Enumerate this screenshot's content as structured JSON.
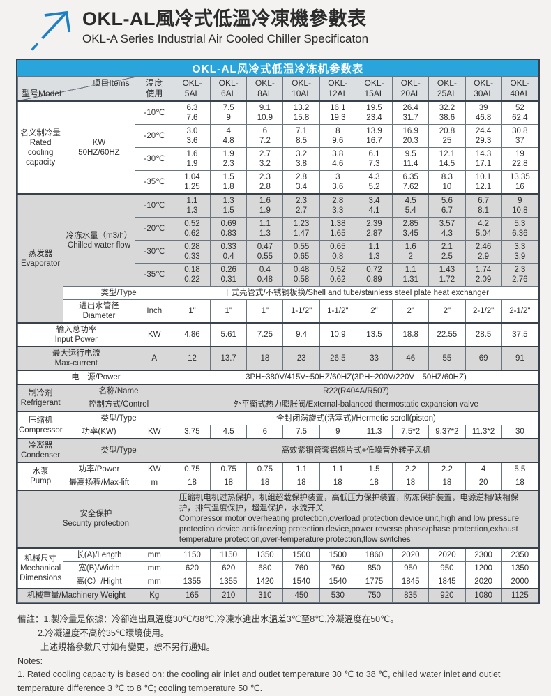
{
  "page": {
    "title_zh": "OKL-AL風冷式低溫冷凍機參數表",
    "title_en": "OKL-A Series Industrial Air Cooled Chiller Specificaton"
  },
  "colors": {
    "bar_blue": "#29a5dc",
    "arrow_blue": "#1d7fc4",
    "header_cell_bg": "#dcdfe2",
    "gray_row_bg": "#d8d8d8",
    "border_dark": "#39424b"
  },
  "table": {
    "title": "OKL-AL风冷式低温冷冻机参数表",
    "corner": {
      "bottom_left": "型号Model",
      "top_right": "项目Items"
    },
    "temp_header": "温度\n使用",
    "models": [
      "OKL-\n5AL",
      "OKL-\n6AL",
      "OKL-\n8AL",
      "OKL-\n10AL",
      "OKL-\n12AL",
      "OKL-\n15AL",
      "OKL-\n20AL",
      "OKL-\n25AL",
      "OKL-\n30AL",
      "OKL-\n40AL"
    ],
    "rows": [
      {
        "sep": true,
        "cells": [
          {
            "t": "名义制冷量\nRated\ncooling\ncapacity",
            "rs": 4
          },
          {
            "t": "KW\n50HZ/60HZ",
            "rs": 4
          },
          {
            "t": "-10℃"
          },
          "6.3\n7.6",
          "7.5\n9",
          "9.1\n10.9",
          "13.2\n15.8",
          "16.1\n19.3",
          "19.5\n23.4",
          "26.4\n31.7",
          "32.2\n38.6",
          "39\n46.8",
          "52\n62.4"
        ]
      },
      {
        "cells": [
          {
            "t": "-20℃"
          },
          "3.0\n3.6",
          "4\n4.8",
          "6\n7.2",
          "7.1\n8.5",
          "8\n9.6",
          "13.9\n16.7",
          "16.9\n20.3",
          "20.8\n25",
          "24.4\n29.3",
          "30.8\n37"
        ]
      },
      {
        "cells": [
          {
            "t": "-30℃"
          },
          "1.6\n1.9",
          "1.9\n2.3",
          "2.7\n3.2",
          "3.2\n3.8",
          "3.8\n4.6",
          "6.1\n7.3",
          "9.5\n11.4",
          "12.1\n14.5",
          "14.3\n17.1",
          "19\n22.8"
        ]
      },
      {
        "cells": [
          {
            "t": "-35℃"
          },
          "1.04\n1.25",
          "1.5\n1.8",
          "2.3\n2.8",
          "2.8\n3.4",
          "3\n3.6",
          "4.3\n5.2",
          "6.35\n7.62",
          "8.3\n10",
          "10.1\n12.1",
          "13.35\n16"
        ]
      },
      {
        "g": true,
        "sep": true,
        "cells": [
          {
            "t": "蒸发器\nEvaporator",
            "rs": 6
          },
          {
            "t": "冷冻水量（m3/h）\nChilled water flow",
            "rs": 4
          },
          {
            "t": "-10℃"
          },
          "1.1\n1.3",
          "1.3\n1.5",
          "1.6\n1.9",
          "2.3\n2.7",
          "2.8\n3.3",
          "3.4\n4.1",
          "4.5\n5.4",
          "5.6\n6.7",
          "6.7\n8.1",
          "9\n10.8"
        ]
      },
      {
        "g": true,
        "cells": [
          {
            "t": "-20℃"
          },
          "0.52\n0.62",
          "0.69\n0.83",
          "1.1\n1.3",
          "1.23\n1.47",
          "1.38\n1.65",
          "2.39\n2.87",
          "2.85\n3.45",
          "3.57\n4.3",
          "4.2\n5.04",
          "5.3\n6.36"
        ]
      },
      {
        "g": true,
        "cells": [
          {
            "t": "-30℃"
          },
          "0.28\n0.33",
          "0.33\n0.4",
          "0.47\n0.55",
          "0.55\n0.65",
          "0.65\n0.8",
          "1.1\n1.3",
          "1.6\n2",
          "2.1\n2.5",
          "2.46\n2.9",
          "3.3\n3.9"
        ]
      },
      {
        "g": true,
        "cells": [
          {
            "t": "-35℃"
          },
          "0.18\n0.22",
          "0.26\n0.31",
          "0.4\n0.48",
          "0.48\n0.58",
          "0.52\n0.62",
          "0.72\n0.89",
          "1.1\n1.31",
          "1.43\n1.72",
          "1.74\n2.09",
          "2.3\n2.76"
        ]
      },
      {
        "cells": [
          {
            "t": "类型/Type",
            "cs": 2
          },
          {
            "t": "干式壳管式/不锈钢板换/Shell and tube/stainless steel plate heat exchanger",
            "cs": 10
          }
        ]
      },
      {
        "cells": [
          {
            "t": "进出水管径\nDiameter"
          },
          {
            "t": "Inch"
          },
          "1\"",
          "1\"",
          "1\"",
          "1-1/2\"",
          "1-1/2\"",
          "2\"",
          "2\"",
          "2\"",
          "2-1/2\"",
          "2-1/2\""
        ]
      },
      {
        "sep": true,
        "cells": [
          {
            "t": "输入总功率\nInput Power",
            "cs": 2
          },
          {
            "t": "KW"
          },
          "4.86",
          "5.61",
          "7.25",
          "9.4",
          "10.9",
          "13.5",
          "18.8",
          "22.55",
          "28.5",
          "37.5"
        ]
      },
      {
        "g": true,
        "sep": true,
        "cells": [
          {
            "t": "最大运行电流\nMax-current",
            "cs": 2
          },
          {
            "t": "A"
          },
          "12",
          "13.7",
          "18",
          "23",
          "26.5",
          "33",
          "46",
          "55",
          "69",
          "91"
        ]
      },
      {
        "sep": true,
        "cells": [
          {
            "t": "电　源/Power",
            "cs": 3
          },
          {
            "t": "3PH~380V/415V~50HZ/60HZ(3PH~200V/220V　50HZ/60HZ)",
            "cs": 10
          }
        ]
      },
      {
        "g": true,
        "sep": true,
        "cells": [
          {
            "t": "制冷剂\nRefrigerant",
            "rs": 2
          },
          {
            "t": "名称/Name",
            "cs": 2
          },
          {
            "t": "R22(R404A/R507)",
            "cs": 10
          }
        ]
      },
      {
        "g": true,
        "cells": [
          {
            "t": "控制方式/Control",
            "cs": 2
          },
          {
            "t": "外平衡式热力膨胀阀/External-balanced thermostatic expansion valve",
            "cs": 10
          }
        ]
      },
      {
        "sep": true,
        "cells": [
          {
            "t": "压缩机\nCompressor",
            "rs": 2
          },
          {
            "t": "类型/Type",
            "cs": 2
          },
          {
            "t": "全封闭涡旋式(活塞式)/Hermetic scroll(piston)",
            "cs": 10
          }
        ]
      },
      {
        "cells": [
          {
            "t": "功率(KW)"
          },
          {
            "t": "KW"
          },
          "3.75",
          "4.5",
          "6",
          "7.5",
          "9",
          "11.3",
          "7.5*2",
          "9.37*2",
          "11.3*2",
          "30"
        ]
      },
      {
        "g": true,
        "sep": true,
        "cells": [
          {
            "t": "冷凝器\nCondenser"
          },
          {
            "t": "类型/Type",
            "cs": 2
          },
          {
            "t": "高效紫铜管套铝翅片式+低噪音外转子风机",
            "cs": 10
          }
        ]
      },
      {
        "sep": true,
        "cells": [
          {
            "t": "水泵\nPump",
            "rs": 2
          },
          {
            "t": "功率/Power"
          },
          {
            "t": "KW"
          },
          "0.75",
          "0.75",
          "0.75",
          "1.1",
          "1.1",
          "1.5",
          "2.2",
          "2.2",
          "4",
          "5.5"
        ]
      },
      {
        "cells": [
          {
            "t": "最高扬程/Max-lift"
          },
          {
            "t": "m"
          },
          "18",
          "18",
          "18",
          "18",
          "18",
          "18",
          "18",
          "18",
          "20",
          "18"
        ]
      },
      {
        "g": true,
        "sep": true,
        "cells": [
          {
            "t": "安全保护\nSecurity protection",
            "cs": 3
          },
          {
            "t": "压缩机电机过热保护，机组超载保护装置，高低压力保护装置，防冻保护装置，电源逆相/缺相保护，排气温度保护，超温保护，水流开关\nCompressor motor overheating protection,overload protection device unit,high and low pressure protection device,anti-freezing protection device,power reverse phase/phase protection,exhaust temperature protection,over-temperature protection,flow switches",
            "cs": 10,
            "cls": "lt"
          }
        ]
      },
      {
        "sep": true,
        "cells": [
          {
            "t": "机械尺寸\nMechanical\nDimensions",
            "rs": 3
          },
          {
            "t": "长(A)/Length"
          },
          {
            "t": "mm"
          },
          "1150",
          "1150",
          "1350",
          "1500",
          "1500",
          "1860",
          "2020",
          "2020",
          "2300",
          "2350"
        ]
      },
      {
        "cells": [
          {
            "t": "宽(B)/Width"
          },
          {
            "t": "mm"
          },
          "620",
          "620",
          "680",
          "760",
          "760",
          "850",
          "950",
          "950",
          "1200",
          "1350"
        ]
      },
      {
        "cells": [
          {
            "t": "高(C）/Hight"
          },
          {
            "t": "mm"
          },
          "1355",
          "1355",
          "1420",
          "1540",
          "1540",
          "1775",
          "1845",
          "1845",
          "2020",
          "2000"
        ]
      },
      {
        "g": true,
        "sep": true,
        "cells": [
          {
            "t": "机械重量/Machinery Weight",
            "cs": 2
          },
          {
            "t": "Kg"
          },
          "165",
          "210",
          "310",
          "450",
          "530",
          "750",
          "835",
          "920",
          "1080",
          "1125"
        ]
      }
    ]
  },
  "notes": {
    "zh": [
      "備註：1.製冷量是依據：冷卻進出風溫度30℃/38℃,冷凍水進出水溫差3℃至8℃,冷凝溫度在50℃。",
      "2.冷凝溫度不高於35℃環境使用。",
      "上述規格參數尺寸如有變更，恕不另行通知。"
    ],
    "en": [
      "Notes:",
      "1. Rated cooling capacity is based on: the cooling air inlet and outlet temperature 30 ℃ to 38 ℃, chilled water inlet and outlet temperature difference 3 ℃ to 8 ℃; cooling temperature 50 ℃."
    ]
  }
}
